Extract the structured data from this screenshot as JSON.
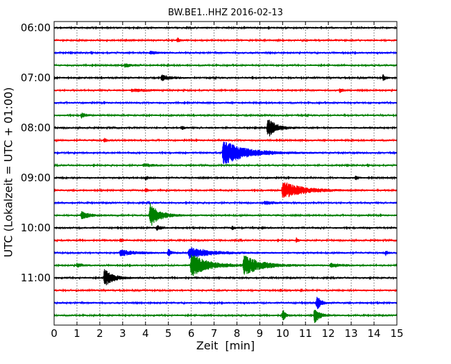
{
  "chart_data": {
    "type": "line",
    "title": "BW.BE1..HHZ 2016-02-13",
    "xlabel": "Zeit  [min]",
    "ylabel": "UTC (Lokalzeit = UTC + 01:00)",
    "xlim": [
      0,
      15
    ],
    "x_ticks": [
      "0",
      "1",
      "2",
      "3",
      "4",
      "5",
      "6",
      "7",
      "8",
      "9",
      "10",
      "11",
      "12",
      "13",
      "14",
      "15"
    ],
    "y_ticks": [
      "06:00",
      "07:00",
      "08:00",
      "09:00",
      "10:00",
      "11:00"
    ],
    "trace_colors": [
      "#000000",
      "#ff0000",
      "#0000ff",
      "#008000"
    ],
    "grid": "vertical dotted",
    "traces": [
      {
        "start": "06:00",
        "events": []
      },
      {
        "start": "06:15",
        "events": [
          {
            "t": 5.4,
            "amp": 0.25,
            "dur": 0.1
          }
        ]
      },
      {
        "start": "06:30",
        "events": [
          {
            "t": 4.2,
            "amp": 0.15,
            "dur": 0.3
          }
        ]
      },
      {
        "start": "06:45",
        "events": [
          {
            "t": 3.1,
            "amp": 0.2,
            "dur": 0.2
          }
        ]
      },
      {
        "start": "07:00",
        "events": [
          {
            "t": 4.7,
            "amp": 0.3,
            "dur": 0.3
          },
          {
            "t": 14.4,
            "amp": 0.3,
            "dur": 0.1
          }
        ]
      },
      {
        "start": "07:15",
        "events": [
          {
            "t": 3.4,
            "amp": 0.15,
            "dur": 0.6
          },
          {
            "t": 12.5,
            "amp": 0.2,
            "dur": 0.1
          }
        ]
      },
      {
        "start": "07:30",
        "events": []
      },
      {
        "start": "07:45",
        "events": [
          {
            "t": 1.2,
            "amp": 0.25,
            "dur": 0.15
          }
        ]
      },
      {
        "start": "08:00",
        "events": [
          {
            "t": 5.6,
            "amp": 0.15,
            "dur": 0.1
          },
          {
            "t": 9.35,
            "amp": 1.0,
            "dur": 0.35
          }
        ]
      },
      {
        "start": "08:15",
        "events": [
          {
            "t": 2.2,
            "amp": 0.2,
            "dur": 0.1
          }
        ]
      },
      {
        "start": "08:30",
        "events": [
          {
            "t": 7.4,
            "amp": 1.3,
            "dur": 0.9
          }
        ]
      },
      {
        "start": "08:45",
        "events": [
          {
            "t": 3.9,
            "amp": 0.15,
            "dur": 0.4
          }
        ]
      },
      {
        "start": "09:00",
        "events": [
          {
            "t": 4.0,
            "amp": 0.2,
            "dur": 0.1
          },
          {
            "t": 13.2,
            "amp": 0.2,
            "dur": 0.1
          }
        ]
      },
      {
        "start": "09:15",
        "events": [
          {
            "t": 4.0,
            "amp": 0.2,
            "dur": 0.1
          },
          {
            "t": 10.0,
            "amp": 0.9,
            "dur": 0.8
          }
        ]
      },
      {
        "start": "09:30",
        "events": [
          {
            "t": 9.2,
            "amp": 0.15,
            "dur": 0.4
          }
        ]
      },
      {
        "start": "09:45",
        "events": [
          {
            "t": 1.2,
            "amp": 0.4,
            "dur": 0.35
          },
          {
            "t": 4.2,
            "amp": 1.2,
            "dur": 0.4
          }
        ]
      },
      {
        "start": "10:00",
        "events": [
          {
            "t": 4.5,
            "amp": 0.25,
            "dur": 0.15
          },
          {
            "t": 7.8,
            "amp": 0.2,
            "dur": 0.1
          },
          {
            "t": 9.1,
            "amp": 0.15,
            "dur": 0.1
          }
        ]
      },
      {
        "start": "10:15",
        "events": [
          {
            "t": 2.9,
            "amp": 0.2,
            "dur": 0.1
          },
          {
            "t": 10.6,
            "amp": 0.2,
            "dur": 0.1
          }
        ]
      },
      {
        "start": "10:30",
        "events": [
          {
            "t": 2.9,
            "amp": 0.3,
            "dur": 0.6
          },
          {
            "t": 5.0,
            "amp": 0.4,
            "dur": 0.1
          },
          {
            "t": 5.9,
            "amp": 0.6,
            "dur": 0.8
          },
          {
            "t": 14.5,
            "amp": 0.25,
            "dur": 0.1
          }
        ]
      },
      {
        "start": "10:45",
        "events": [
          {
            "t": 1.0,
            "amp": 0.2,
            "dur": 0.2
          },
          {
            "t": 6.0,
            "amp": 1.2,
            "dur": 0.7
          },
          {
            "t": 8.3,
            "amp": 1.0,
            "dur": 0.7
          },
          {
            "t": 12.1,
            "amp": 0.2,
            "dur": 0.4
          }
        ]
      },
      {
        "start": "11:00",
        "events": [
          {
            "t": 2.2,
            "amp": 0.9,
            "dur": 0.35
          }
        ]
      },
      {
        "start": "11:15",
        "events": []
      },
      {
        "start": "11:30",
        "events": [
          {
            "t": 11.5,
            "amp": 0.8,
            "dur": 0.15
          }
        ]
      },
      {
        "start": "11:45",
        "events": [
          {
            "t": 10.0,
            "amp": 0.6,
            "dur": 0.12
          },
          {
            "t": 11.4,
            "amp": 0.8,
            "dur": 0.2
          }
        ]
      }
    ]
  }
}
